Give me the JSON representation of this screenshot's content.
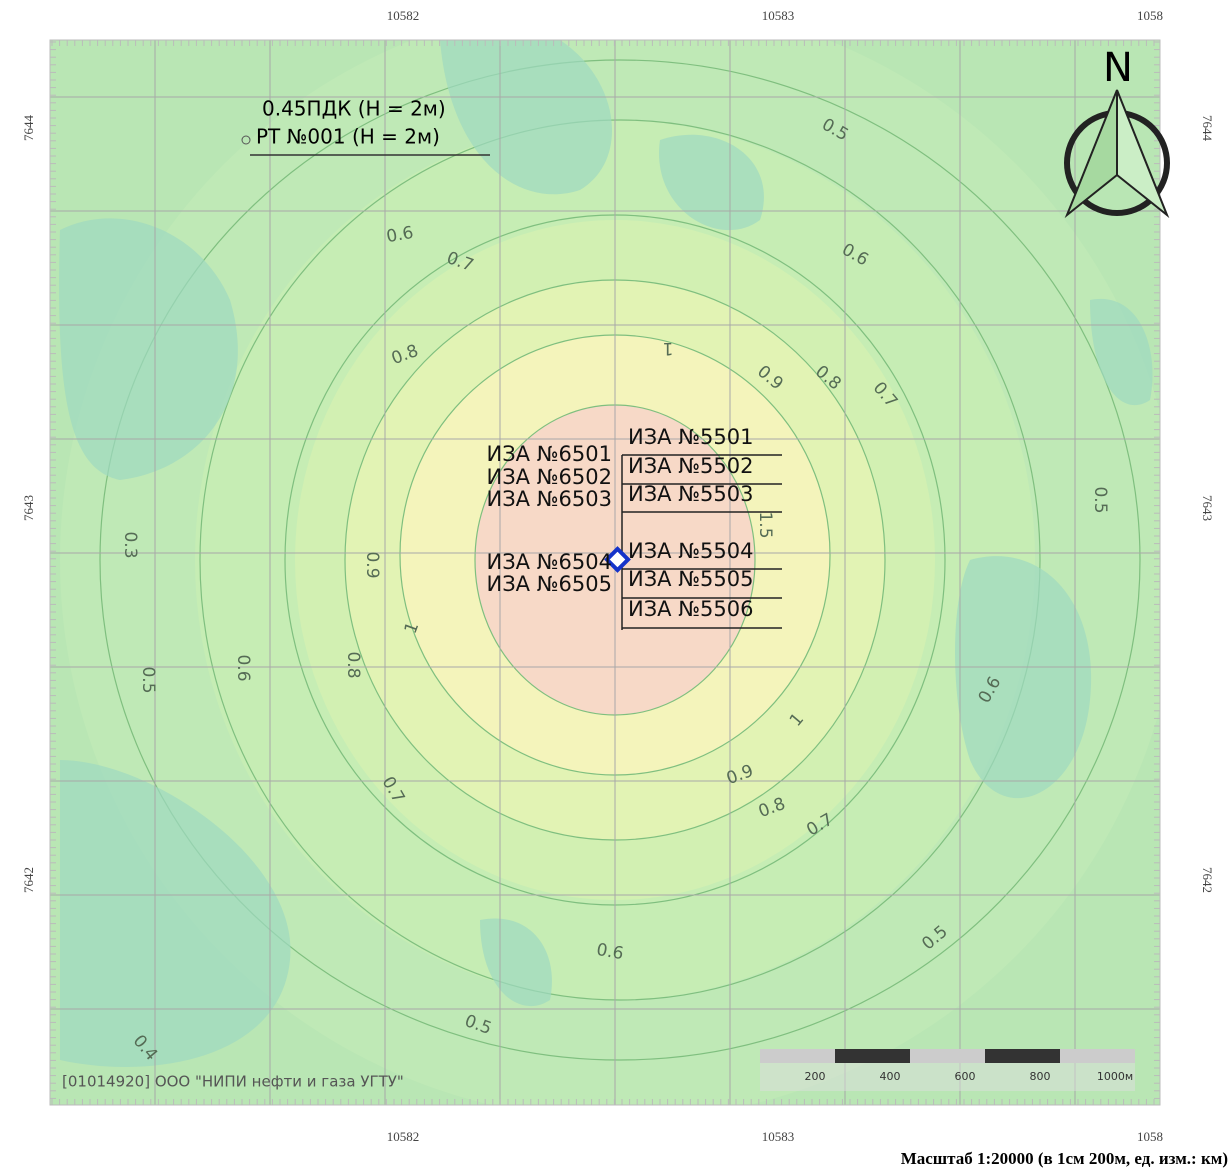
{
  "coordinates": {
    "top": [
      "10582",
      "10583",
      "1058"
    ],
    "bottom": [
      "10582",
      "10583",
      "1058"
    ],
    "left": [
      "7644",
      "7643",
      "7642"
    ],
    "right": [
      "7644",
      "7643",
      "7642"
    ]
  },
  "legend": [
    "0.45ПДК (Н = 2м)",
    "РТ №001 (Н = 2м)"
  ],
  "sources_left": [
    "ИЗА №6501",
    "ИЗА №6502",
    "ИЗА №6503",
    "ИЗА №6504",
    "ИЗА №6505"
  ],
  "sources_right": [
    "ИЗА №5501",
    "ИЗА №5502",
    "ИЗА №5503",
    "ИЗА №5504",
    "ИЗА №5505",
    "ИЗА №5506"
  ],
  "isoline_labels": [
    "0.5",
    "0.6",
    "0.7",
    "0.6",
    "1",
    "0.8",
    "0.9",
    "0.8",
    "0.7",
    "0.5",
    "0.3",
    "0.9",
    "1",
    "1.5",
    "0.5",
    "0.6",
    "0.8",
    "1",
    "0.6",
    "0.7",
    "0.9",
    "0.8",
    "0.7",
    "0.6",
    "0.5",
    "0.5",
    "0.4"
  ],
  "north": "N",
  "copyright": "[01014920] ООО \"НИПИ нефти и газа УГТУ\"",
  "scale_bar": [
    "200",
    "400",
    "600",
    "800",
    "1000м"
  ],
  "caption": "Масштаб 1:20000 (в 1см 200м, ед. изм.: км)"
}
